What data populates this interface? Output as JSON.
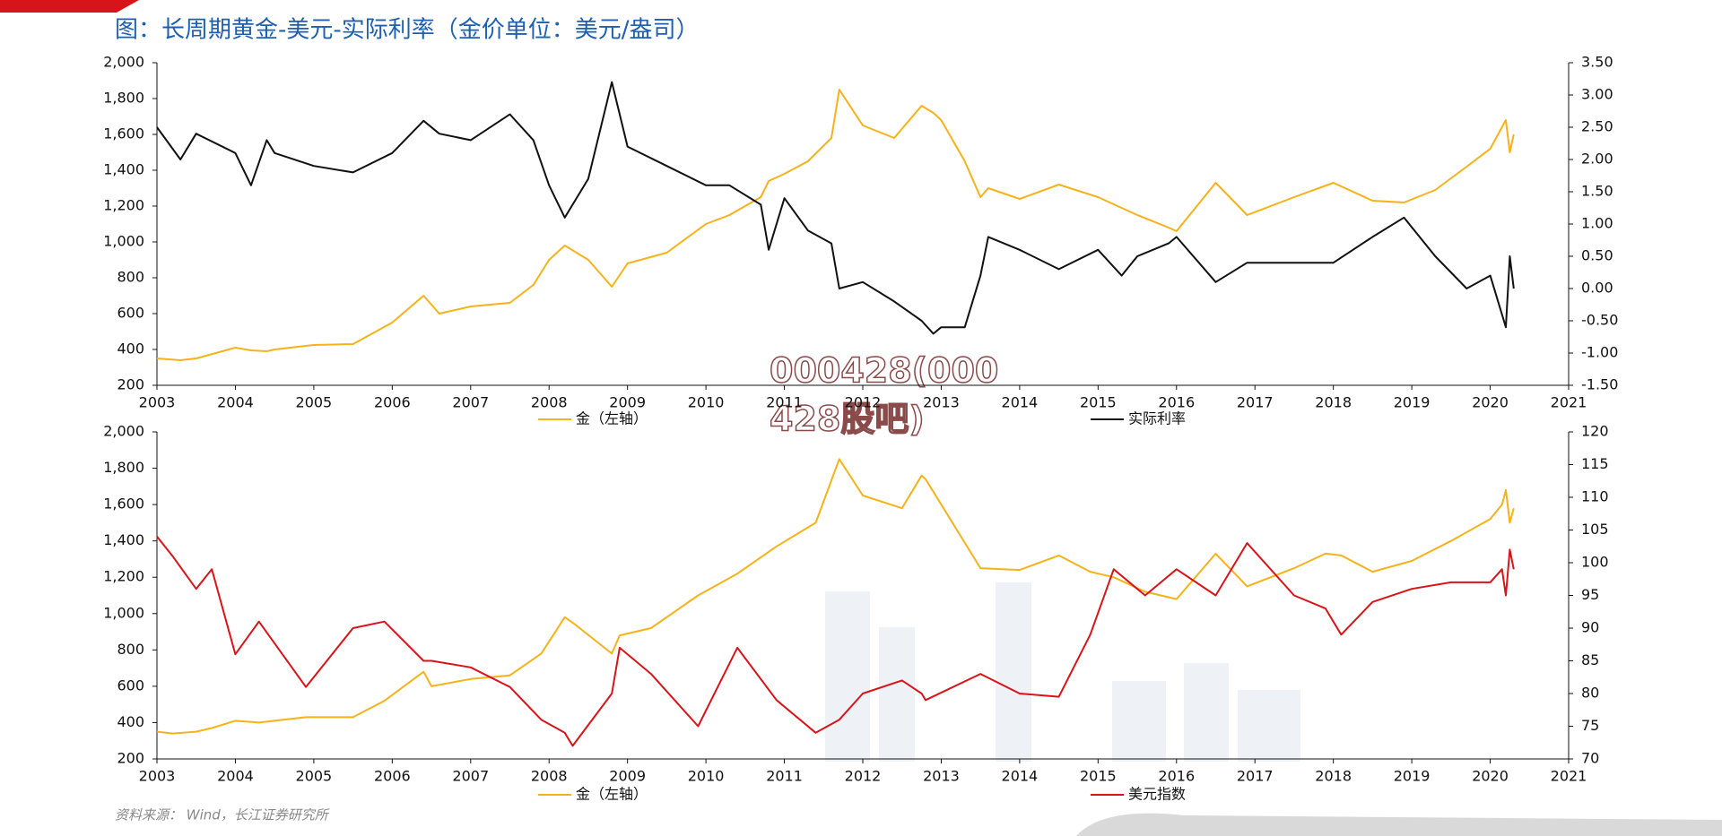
{
  "title": "图：长周期黄金-美元-实际利率（金价单位：美元/盎司）",
  "source": "资料来源： Wind，长江证券研究所",
  "watermark": [
    "000428(000",
    "428股吧)"
  ],
  "chart_data": [
    {
      "type": "line",
      "x": [
        2003.0,
        2003.3,
        2003.5,
        2004.0,
        2004.2,
        2004.4,
        2004.5,
        2005.0,
        2005.5,
        2006.0,
        2006.4,
        2006.6,
        2007.0,
        2007.5,
        2007.8,
        2008.0,
        2008.2,
        2008.5,
        2008.8,
        2009.0,
        2009.5,
        2010.0,
        2010.3,
        2010.7,
        2010.8,
        2011.0,
        2011.3,
        2011.6,
        2011.7,
        2012.0,
        2012.4,
        2012.75,
        2012.9,
        2013.0,
        2013.3,
        2013.5,
        2013.6,
        2014.0,
        2014.5,
        2015.0,
        2015.3,
        2015.5,
        2015.9,
        2016.0,
        2016.5,
        2016.9,
        2017.5,
        2018.0,
        2018.5,
        2018.9,
        2019.3,
        2019.7,
        2020.0,
        2020.2,
        2020.25,
        2020.3
      ],
      "series": [
        {
          "name": "金（左轴）",
          "color": "#f5b21b",
          "values": [
            350,
            340,
            350,
            410,
            395,
            390,
            400,
            425,
            430,
            550,
            700,
            600,
            640,
            660,
            760,
            900,
            980,
            900,
            750,
            880,
            940,
            1100,
            1150,
            1250,
            1340,
            1380,
            1450,
            1580,
            1850,
            1650,
            1580,
            1760,
            1720,
            1680,
            1450,
            1250,
            1300,
            1240,
            1320,
            1250,
            1190,
            1150,
            1080,
            1060,
            1330,
            1150,
            1250,
            1330,
            1230,
            1220,
            1290,
            1420,
            1520,
            1680,
            1500,
            1600
          ]
        },
        {
          "name": "实际利率",
          "color": "#111111",
          "axis": "y2",
          "values": [
            2.5,
            2.0,
            2.4,
            2.1,
            1.6,
            2.3,
            2.1,
            1.9,
            1.8,
            2.1,
            2.6,
            2.4,
            2.3,
            2.7,
            2.3,
            1.6,
            1.1,
            1.7,
            3.2,
            2.2,
            1.9,
            1.6,
            1.6,
            1.3,
            0.6,
            1.4,
            0.9,
            0.7,
            0.0,
            0.1,
            -0.2,
            -0.5,
            -0.7,
            -0.6,
            -0.6,
            0.2,
            0.8,
            0.6,
            0.3,
            0.6,
            0.2,
            0.5,
            0.7,
            0.8,
            0.1,
            0.4,
            0.4,
            0.4,
            0.8,
            1.1,
            0.5,
            0.0,
            0.2,
            -0.6,
            0.5,
            0.0
          ]
        }
      ],
      "xlim": [
        2003,
        2021
      ],
      "xticks": [
        2003,
        2004,
        2005,
        2006,
        2007,
        2008,
        2009,
        2010,
        2011,
        2012,
        2013,
        2014,
        2015,
        2016,
        2017,
        2018,
        2019,
        2020,
        2021
      ],
      "ylim": [
        200,
        2000
      ],
      "yticks": [
        {
          "value": 200,
          "label": "200"
        },
        {
          "value": 400,
          "label": "400"
        },
        {
          "value": 600,
          "label": "600"
        },
        {
          "value": 800,
          "label": "800"
        },
        {
          "value": 1000,
          "label": "1,000"
        },
        {
          "value": 1200,
          "label": "1,200"
        },
        {
          "value": 1400,
          "label": "1,400"
        },
        {
          "value": 1600,
          "label": "1,600"
        },
        {
          "value": 1800,
          "label": "1,800"
        },
        {
          "value": 2000,
          "label": "2,000"
        }
      ],
      "y2lim": [
        -1.5,
        3.5
      ],
      "y2ticks": [
        {
          "value": -1.5,
          "label": "-1.50"
        },
        {
          "value": -1,
          "label": "-1.00"
        },
        {
          "value": -0.5,
          "label": "-0.50"
        },
        {
          "value": 0,
          "label": "0.00"
        },
        {
          "value": 0.5,
          "label": "0.50"
        },
        {
          "value": 1,
          "label": "1.00"
        },
        {
          "value": 1.5,
          "label": "1.50"
        },
        {
          "value": 2,
          "label": "2.00"
        },
        {
          "value": 2.5,
          "label": "2.50"
        },
        {
          "value": 3,
          "label": "3.00"
        },
        {
          "value": 3.5,
          "label": "3.50"
        }
      ]
    },
    {
      "type": "line",
      "x": [
        2003.0,
        2003.2,
        2003.5,
        2003.7,
        2004.0,
        2004.3,
        2004.9,
        2005.5,
        2005.9,
        2006.4,
        2006.5,
        2007.0,
        2007.5,
        2007.9,
        2008.2,
        2008.3,
        2008.8,
        2008.9,
        2009.3,
        2009.9,
        2010.4,
        2010.9,
        2011.4,
        2011.7,
        2012.0,
        2012.5,
        2012.75,
        2012.8,
        2013.5,
        2014.0,
        2014.5,
        2014.9,
        2015.2,
        2015.6,
        2016.0,
        2016.5,
        2016.9,
        2017.5,
        2017.9,
        2018.1,
        2018.5,
        2019.0,
        2019.5,
        2020.0,
        2020.15,
        2020.2,
        2020.25,
        2020.3
      ],
      "series": [
        {
          "name": "金（左轴）",
          "color": "#f5b21b",
          "values": [
            350,
            340,
            350,
            370,
            410,
            400,
            430,
            430,
            520,
            680,
            600,
            640,
            660,
            780,
            980,
            950,
            780,
            880,
            920,
            1100,
            1220,
            1370,
            1500,
            1850,
            1650,
            1580,
            1760,
            1740,
            1250,
            1240,
            1320,
            1230,
            1200,
            1120,
            1080,
            1330,
            1150,
            1250,
            1330,
            1320,
            1230,
            1290,
            1400,
            1520,
            1600,
            1680,
            1500,
            1580
          ]
        },
        {
          "name": "美元指数",
          "color": "#d7141a",
          "axis": "y2",
          "values": [
            104,
            101,
            96,
            99,
            86,
            91,
            81,
            90,
            91,
            85,
            85,
            84,
            81,
            76,
            74,
            72,
            80,
            87,
            83,
            75,
            87,
            79,
            74,
            76,
            80,
            82,
            80,
            79,
            83,
            80,
            79.5,
            89,
            99,
            95,
            99,
            95,
            103,
            95,
            93,
            89,
            94,
            96,
            97,
            97,
            99,
            95,
            102,
            99
          ]
        }
      ],
      "xlim": [
        2003,
        2021
      ],
      "xticks": [
        2003,
        2004,
        2005,
        2006,
        2007,
        2008,
        2009,
        2010,
        2011,
        2012,
        2013,
        2014,
        2015,
        2016,
        2017,
        2018,
        2019,
        2020,
        2021
      ],
      "ylim": [
        200,
        2000
      ],
      "yticks": [
        {
          "value": 200,
          "label": "200"
        },
        {
          "value": 400,
          "label": "400"
        },
        {
          "value": 600,
          "label": "600"
        },
        {
          "value": 800,
          "label": "800"
        },
        {
          "value": 1000,
          "label": "1,000"
        },
        {
          "value": 1200,
          "label": "1,200"
        },
        {
          "value": 1400,
          "label": "1,400"
        },
        {
          "value": 1600,
          "label": "1,600"
        },
        {
          "value": 1800,
          "label": "1,800"
        },
        {
          "value": 2000,
          "label": "2,000"
        }
      ],
      "y2lim": [
        70,
        120
      ],
      "y2ticks": [
        70,
        75,
        80,
        85,
        90,
        95,
        100,
        105,
        110,
        115,
        120
      ]
    }
  ]
}
